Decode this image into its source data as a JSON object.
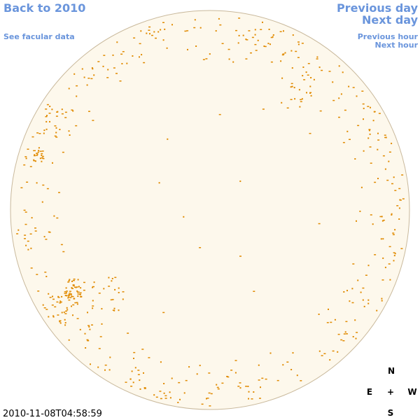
{
  "header": {
    "back_link": "Back to 2010",
    "data_link": "See facular data",
    "previous_day": "Previous day",
    "next_day": "Next day",
    "previous_hour": "Previous hour",
    "next_hour": "Next hour"
  },
  "timestamp": "2010-11-08T04:58:59",
  "compass": {
    "north": "N",
    "east": "E",
    "center": "+",
    "west": "W",
    "south": "S"
  }
}
